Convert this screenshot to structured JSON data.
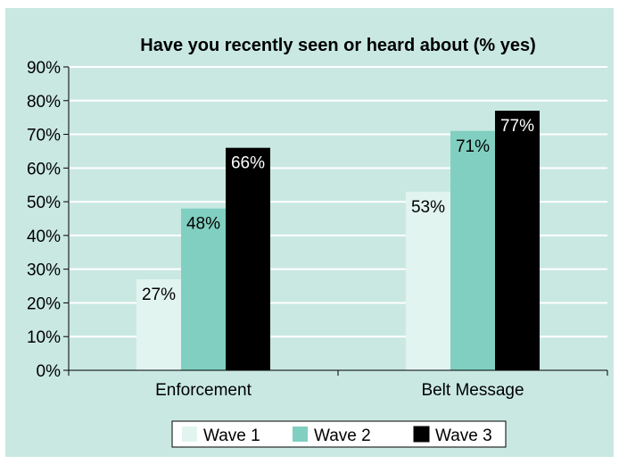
{
  "chart_data": {
    "type": "bar",
    "title": "Have you recently seen or heard about (% yes)",
    "xlabel": "",
    "ylabel": "",
    "categories": [
      "Enforcement",
      "Belt Message"
    ],
    "series": [
      {
        "name": "Wave 1",
        "values": [
          27,
          53
        ],
        "labels": [
          "27%",
          "53%"
        ],
        "color": "#e2f4ef"
      },
      {
        "name": "Wave 2",
        "values": [
          48,
          71
        ],
        "labels": [
          "48%",
          "71%"
        ],
        "color": "#80cfc0"
      },
      {
        "name": "Wave 3",
        "values": [
          66,
          77
        ],
        "labels": [
          "66%",
          "77%"
        ],
        "color": "#000000"
      }
    ],
    "ylim": [
      0,
      90
    ],
    "yticks": [
      0,
      10,
      20,
      30,
      40,
      50,
      60,
      70,
      80,
      90
    ],
    "ytick_labels": [
      "0%",
      "10%",
      "20%",
      "30%",
      "40%",
      "50%",
      "60%",
      "70%",
      "80%",
      "90%"
    ],
    "grid": true,
    "legend_position": "bottom",
    "background_color": "#c9e8e2",
    "grid_color": "#ffffff"
  }
}
